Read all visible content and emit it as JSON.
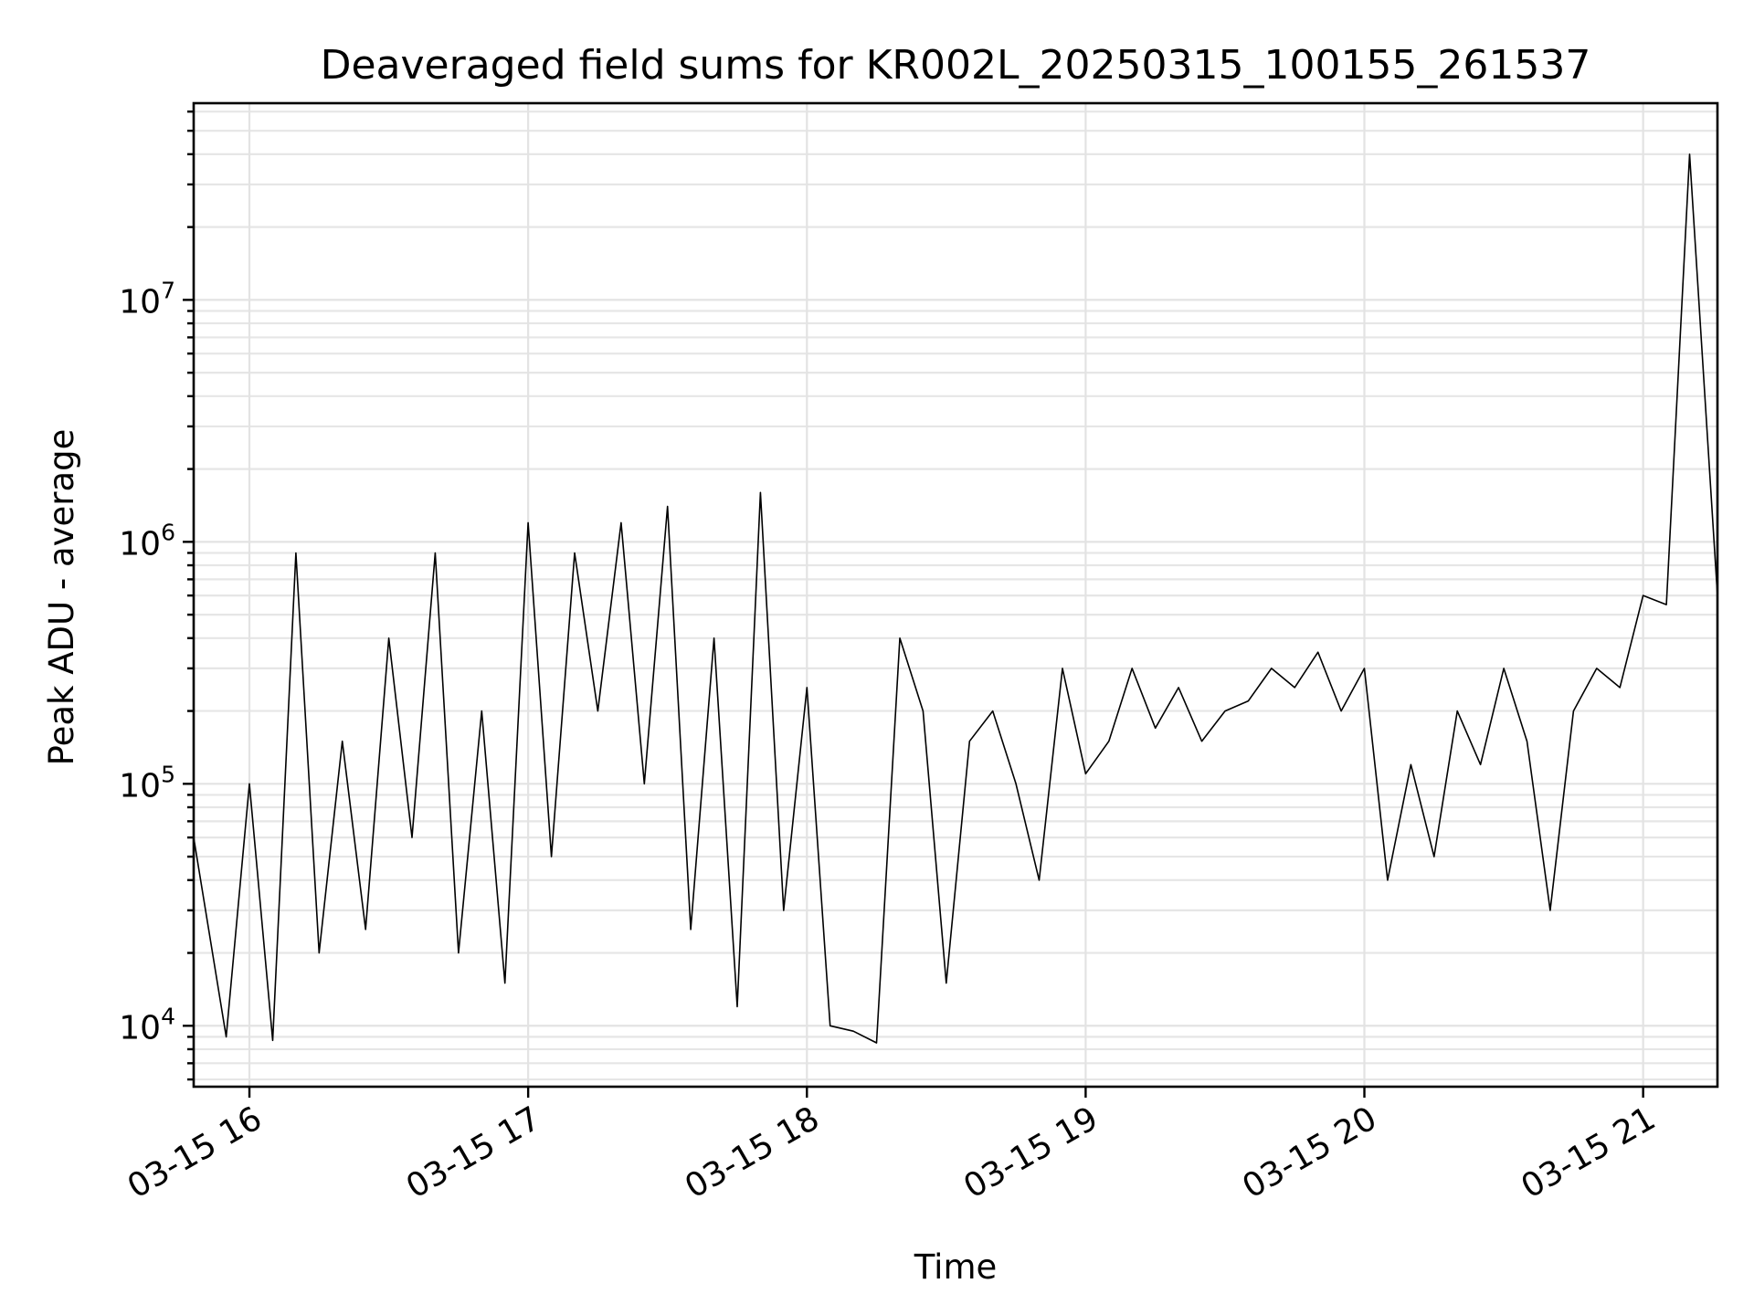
{
  "chart_data": {
    "type": "line",
    "title": "Deaveraged field sums for KR002L_20250315_100155_261537",
    "xlabel": "Time",
    "ylabel": "Peak ADU - average",
    "x_ticks": [
      "03-15 16",
      "03-15 17",
      "03-15 18",
      "03-15 19",
      "03-15 20",
      "03-15 21"
    ],
    "y_ticks": [
      {
        "base": "10",
        "exp": "4",
        "value": 10000
      },
      {
        "base": "10",
        "exp": "5",
        "value": 100000
      },
      {
        "base": "10",
        "exp": "6",
        "value": 1000000
      },
      {
        "base": "10",
        "exp": "7",
        "value": 10000000
      }
    ],
    "y_scale": "log",
    "ylim": [
      5600,
      65000000
    ],
    "xlim": [
      "2025-03-15 15:48",
      "2025-03-15 21:16"
    ],
    "grid": true,
    "series": [
      {
        "color": "#000000",
        "x": [
          "2025-03-15 15:48",
          "2025-03-15 15:55",
          "2025-03-15 16:00",
          "2025-03-15 16:05",
          "2025-03-15 16:10",
          "2025-03-15 16:15",
          "2025-03-15 16:20",
          "2025-03-15 16:25",
          "2025-03-15 16:30",
          "2025-03-15 16:35",
          "2025-03-15 16:40",
          "2025-03-15 16:45",
          "2025-03-15 16:50",
          "2025-03-15 16:55",
          "2025-03-15 17:00",
          "2025-03-15 17:05",
          "2025-03-15 17:10",
          "2025-03-15 17:15",
          "2025-03-15 17:20",
          "2025-03-15 17:25",
          "2025-03-15 17:30",
          "2025-03-15 17:35",
          "2025-03-15 17:40",
          "2025-03-15 17:45",
          "2025-03-15 17:50",
          "2025-03-15 17:55",
          "2025-03-15 18:00",
          "2025-03-15 18:05",
          "2025-03-15 18:10",
          "2025-03-15 18:15",
          "2025-03-15 18:20",
          "2025-03-15 18:25",
          "2025-03-15 18:30",
          "2025-03-15 18:35",
          "2025-03-15 18:40",
          "2025-03-15 18:45",
          "2025-03-15 18:50",
          "2025-03-15 18:55",
          "2025-03-15 19:00",
          "2025-03-15 19:05",
          "2025-03-15 19:10",
          "2025-03-15 19:15",
          "2025-03-15 19:20",
          "2025-03-15 19:25",
          "2025-03-15 19:30",
          "2025-03-15 19:35",
          "2025-03-15 19:40",
          "2025-03-15 19:45",
          "2025-03-15 19:50",
          "2025-03-15 19:55",
          "2025-03-15 20:00",
          "2025-03-15 20:05",
          "2025-03-15 20:10",
          "2025-03-15 20:15",
          "2025-03-15 20:20",
          "2025-03-15 20:25",
          "2025-03-15 20:30",
          "2025-03-15 20:35",
          "2025-03-15 20:40",
          "2025-03-15 20:45",
          "2025-03-15 20:50",
          "2025-03-15 20:55",
          "2025-03-15 21:00",
          "2025-03-15 21:05",
          "2025-03-15 21:10",
          "2025-03-15 21:16"
        ],
        "values": [
          60000,
          9000,
          100000,
          8700,
          900000,
          20000,
          150000,
          25000,
          400000,
          60000,
          900000,
          20000,
          200000,
          15000,
          1200000,
          50000,
          900000,
          200000,
          1200000,
          100000,
          1400000,
          25000,
          400000,
          12000,
          1600000,
          30000,
          250000,
          10000,
          9500,
          8500,
          400000,
          200000,
          15000,
          150000,
          200000,
          100000,
          40000,
          300000,
          110000,
          150000,
          300000,
          170000,
          250000,
          150000,
          200000,
          220000,
          300000,
          250000,
          350000,
          200000,
          300000,
          40000,
          120000,
          50000,
          200000,
          120000,
          300000,
          150000,
          30000,
          200000,
          300000,
          250000,
          600000,
          550000,
          40000000,
          600000
        ]
      }
    ]
  }
}
